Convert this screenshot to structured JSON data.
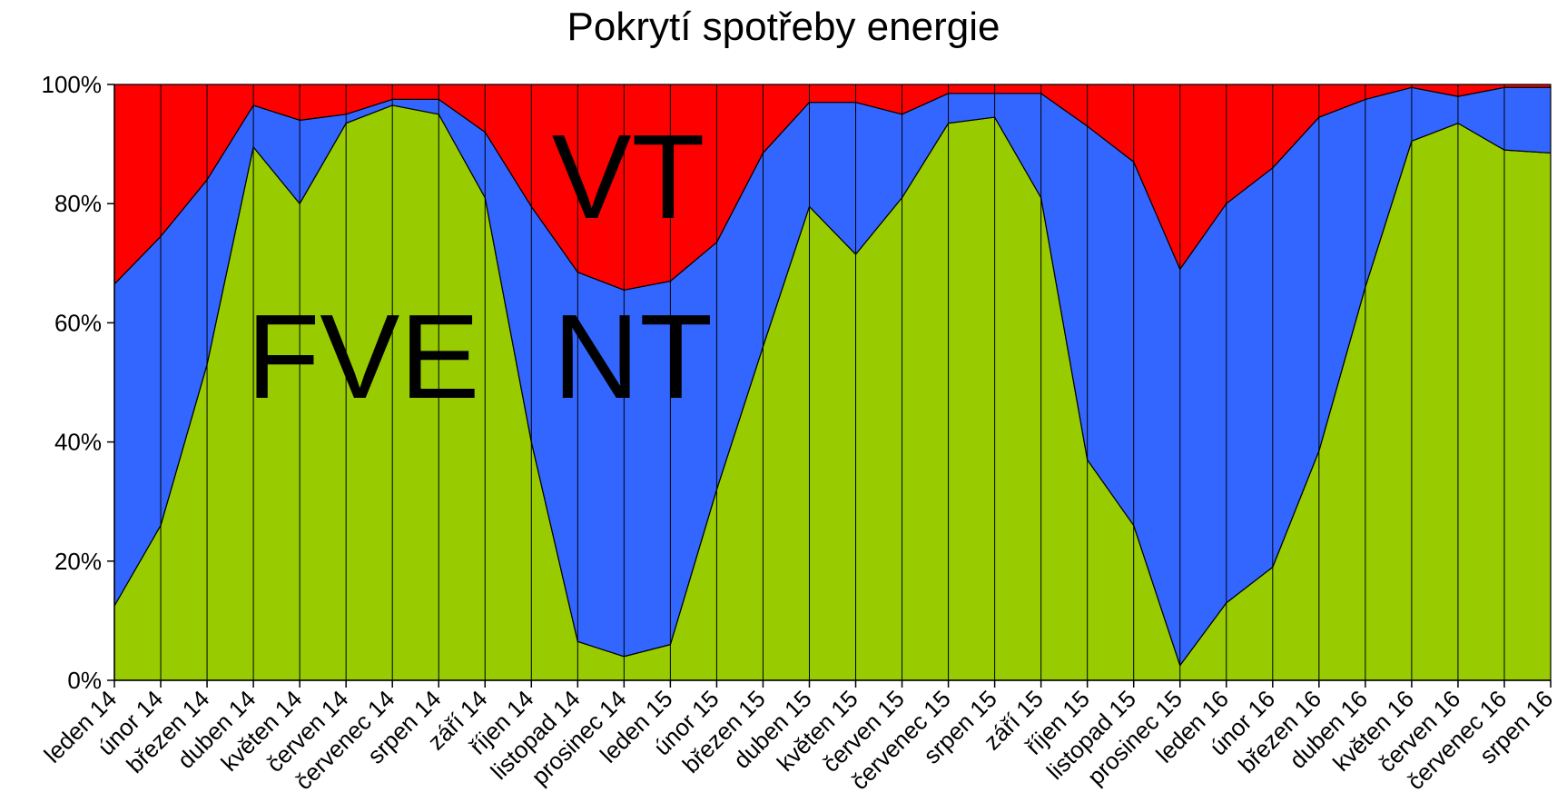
{
  "chart_data": {
    "type": "area",
    "stacked": "percent",
    "title": "Pokrytí spotřeby energie",
    "xlabel": "",
    "ylabel": "",
    "ylim": [
      0,
      100
    ],
    "yticks": [
      "0%",
      "20%",
      "40%",
      "60%",
      "80%",
      "100%"
    ],
    "categories": [
      "leden 14",
      "únor 14",
      "březen 14",
      "duben 14",
      "květen 14",
      "červen 14",
      "červenec 14",
      "srpen 14",
      "září 14",
      "říjen 14",
      "listopad 14",
      "prosinec 14",
      "leden 15",
      "únor 15",
      "březen 15",
      "duben 15",
      "květen 15",
      "červen 15",
      "červenec 15",
      "srpen 15",
      "září 15",
      "říjen 15",
      "listopad 15",
      "prosinec 15",
      "leden 16",
      "únor 16",
      "březen 16",
      "duben 16",
      "květen 16",
      "červen 16",
      "červenec 16",
      "srpen 16"
    ],
    "series": [
      {
        "name": "FVE",
        "color": "#99CC00",
        "values": [
          12.5,
          26,
          53,
          89.5,
          80,
          93.5,
          96.5,
          95,
          81,
          40,
          6.5,
          4,
          6,
          32,
          56,
          79.5,
          71.5,
          81,
          93.5,
          94.5,
          81,
          37,
          26,
          2.5,
          13,
          19,
          38.5,
          66,
          90.5,
          93.5,
          89,
          88.5
        ]
      },
      {
        "name": "NT",
        "color": "#3366FF",
        "values": [
          54,
          48.5,
          31,
          7,
          14,
          1.5,
          1,
          2.5,
          11,
          39.5,
          62,
          61.5,
          61,
          41.5,
          32.5,
          17.5,
          25.5,
          14,
          5,
          4,
          17.5,
          56,
          61,
          66.5,
          67,
          67,
          56,
          31.5,
          9,
          4.5,
          10.5,
          11
        ]
      },
      {
        "name": "VT",
        "color": "#FF0000",
        "values": [
          33.5,
          25.5,
          16,
          3.5,
          6,
          5,
          2.5,
          2.5,
          8,
          20.5,
          31.5,
          34.5,
          33,
          26.5,
          11.5,
          3,
          3,
          5,
          1.5,
          1.5,
          1.5,
          7,
          13,
          31,
          20,
          14,
          5.5,
          2.5,
          0.5,
          2,
          0.5,
          0.5
        ]
      }
    ],
    "annotations": [
      "FVE",
      "NT",
      "VT"
    ]
  }
}
